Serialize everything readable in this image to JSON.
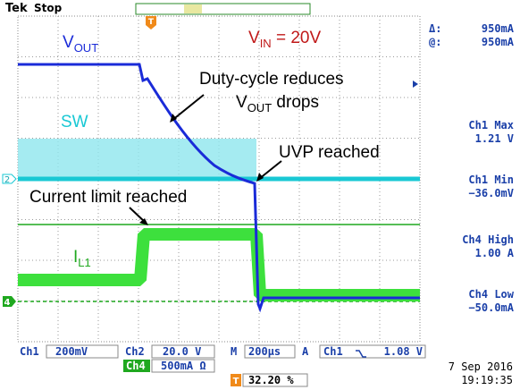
{
  "header": {
    "brand": "Tek",
    "state": "Stop"
  },
  "annotations": {
    "vout": {
      "main": "V",
      "sub": "OUT"
    },
    "vin": {
      "main": "V",
      "sub": "IN",
      "rest": " = 20V"
    },
    "sw": "SW",
    "duty_line1": "Duty-cycle reduces",
    "duty_line2": {
      "main": "V",
      "sub": "OUT",
      "rest": " drops"
    },
    "uvp": "UVP reached",
    "current_limit": "Current limit reached",
    "il1": {
      "main": "I",
      "sub": "L1"
    }
  },
  "markers": {
    "trigger": "T",
    "ch2": "2",
    "ch4": "4"
  },
  "readouts": {
    "delta_label": "Δ:",
    "delta_value": "950mA",
    "at_label": "@:",
    "at_value": "950mA",
    "ch1_max_label": "Ch1 Max",
    "ch1_max_value": "1.21 V",
    "ch1_min_label": "Ch1 Min",
    "ch1_min_value": "−36.0mV",
    "ch4_high_label": "Ch4 High",
    "ch4_high_value": "1.00 A",
    "ch4_low_label": "Ch4 Low",
    "ch4_low_value": "−50.0mA"
  },
  "status": {
    "ch1": "Ch1",
    "ch1_scale": "200mV",
    "ch2": "Ch2",
    "ch2_scale": "20.0 V",
    "timebase_label": "M",
    "timebase": "200µs",
    "trigger_mode": "A",
    "trigger_source": "Ch1",
    "trigger_level": "1.08 V",
    "ch4": "Ch4",
    "ch4_scale": "500mA Ω",
    "trigger_position": "32.20 %",
    "date": "7 Sep  2016",
    "time": "19:19:35"
  }
}
